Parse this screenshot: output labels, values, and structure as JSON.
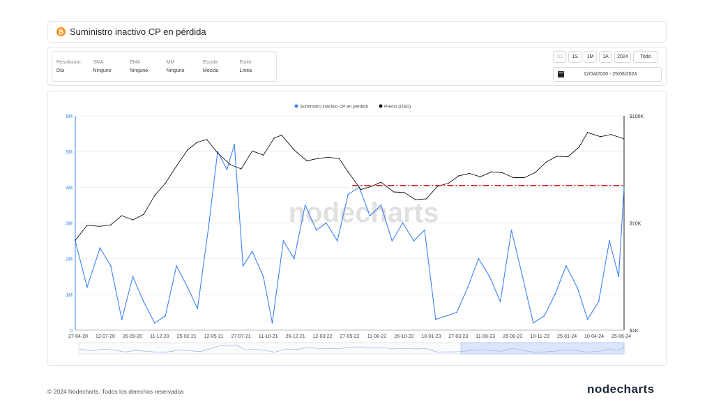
{
  "header": {
    "title": "Suministro inactivo CP en pérdida",
    "coin_icon": "bitcoin-icon"
  },
  "controls": [
    {
      "label": "Resolución",
      "value": "Día"
    },
    {
      "label": "SMA",
      "value": "Ninguno"
    },
    {
      "label": "EMA",
      "value": "Ninguno"
    },
    {
      "label": "MM",
      "value": "Ninguno"
    },
    {
      "label": "Escala",
      "value": "Mezcla"
    },
    {
      "label": "Estilo",
      "value": "Línea"
    }
  ],
  "range_buttons": [
    {
      "label": "1D",
      "disabled": true
    },
    {
      "label": "1S",
      "disabled": false
    },
    {
      "label": "1M",
      "disabled": false
    },
    {
      "label": "1A",
      "disabled": false
    },
    {
      "label": "2024",
      "disabled": false
    },
    {
      "label": "Todo",
      "disabled": false
    }
  ],
  "date_range": "12/04/2020 - 25/06/2024",
  "footer": {
    "copyright": "© 2024 Nodecharts. Todos los derechos reservados",
    "logo": "nodecharts"
  },
  "watermark": "nodecharts",
  "colors": {
    "supply": "#3b82f6",
    "price": "#111111",
    "reference_line": "#d62020",
    "accent": "#f7931a"
  },
  "chart_data": {
    "type": "line",
    "legend": [
      "Suministro inactivo CP en pérdida",
      "Precio (USD)"
    ],
    "legend_position": "top-center",
    "x_tick_labels": [
      "27-04-20",
      "12-07-20",
      "26-09-20",
      "11-12-20",
      "25-02-21",
      "12-05-21",
      "27-07-21",
      "11-10-21",
      "26-12-21",
      "12-03-22",
      "27-05-22",
      "11-08-22",
      "26-10-22",
      "10-01-23",
      "27-03-23",
      "11-06-23",
      "26-08-23",
      "10-11-23",
      "25-01-24",
      "10-04-24",
      "25-06-24"
    ],
    "y_left_ticks": [
      "0",
      "1M",
      "2M",
      "3M",
      "4M",
      "5M",
      "6M"
    ],
    "y_left_range": [
      0,
      6000000
    ],
    "y_right_ticks": [
      "$1K",
      "$10K",
      "$100K"
    ],
    "y_right_scale": "log",
    "y_right_range": [
      1000,
      100000
    ],
    "series": [
      {
        "name": "Suministro inactivo CP en pérdida",
        "axis": "left",
        "x": [
          "2020-04-12",
          "2020-05-15",
          "2020-06-20",
          "2020-07-20",
          "2020-08-20",
          "2020-09-20",
          "2020-10-20",
          "2020-11-20",
          "2020-12-20",
          "2021-01-20",
          "2021-02-20",
          "2021-03-20",
          "2021-04-20",
          "2021-05-15",
          "2021-06-10",
          "2021-07-01",
          "2021-07-25",
          "2021-08-20",
          "2021-09-20",
          "2021-10-15",
          "2021-11-15",
          "2021-12-15",
          "2022-01-15",
          "2022-02-15",
          "2022-03-15",
          "2022-04-15",
          "2022-05-15",
          "2022-06-15",
          "2022-07-15",
          "2022-08-15",
          "2022-09-15",
          "2022-10-15",
          "2022-11-15",
          "2022-12-15",
          "2023-01-15",
          "2023-02-15",
          "2023-03-15",
          "2023-04-15",
          "2023-05-15",
          "2023-06-15",
          "2023-07-15",
          "2023-08-15",
          "2023-09-15",
          "2023-10-15",
          "2023-11-15",
          "2023-12-15",
          "2024-01-15",
          "2024-02-15",
          "2024-03-15",
          "2024-04-15",
          "2024-05-15",
          "2024-06-10",
          "2024-06-25"
        ],
        "values": [
          2500000,
          1200000,
          2300000,
          1800000,
          300000,
          1500000,
          800000,
          200000,
          400000,
          1800000,
          1200000,
          600000,
          2900000,
          5000000,
          4500000,
          5200000,
          1800000,
          2200000,
          1500000,
          200000,
          2500000,
          2000000,
          3500000,
          2800000,
          3000000,
          2500000,
          3800000,
          4000000,
          3200000,
          3500000,
          2500000,
          3000000,
          2500000,
          2800000,
          300000,
          400000,
          500000,
          1200000,
          2000000,
          1500000,
          800000,
          2800000,
          1500000,
          200000,
          400000,
          1000000,
          1800000,
          1200000,
          300000,
          800000,
          2500000,
          1500000,
          4000000
        ]
      },
      {
        "name": "Precio (USD)",
        "axis": "right",
        "x": [
          "2020-04-12",
          "2020-05-15",
          "2020-06-20",
          "2020-07-20",
          "2020-08-20",
          "2020-09-20",
          "2020-10-20",
          "2020-11-20",
          "2020-12-20",
          "2021-01-20",
          "2021-02-20",
          "2021-03-20",
          "2021-04-15",
          "2021-05-15",
          "2021-06-20",
          "2021-07-20",
          "2021-08-20",
          "2021-09-20",
          "2021-10-20",
          "2021-11-10",
          "2021-12-15",
          "2022-01-20",
          "2022-02-20",
          "2022-03-20",
          "2022-04-20",
          "2022-05-15",
          "2022-06-20",
          "2022-07-20",
          "2022-08-15",
          "2022-09-20",
          "2022-10-20",
          "2022-11-20",
          "2022-12-20",
          "2023-01-20",
          "2023-02-20",
          "2023-03-20",
          "2023-04-20",
          "2023-05-20",
          "2023-06-20",
          "2023-07-20",
          "2023-08-20",
          "2023-09-20",
          "2023-10-20",
          "2023-11-20",
          "2023-12-20",
          "2024-01-20",
          "2024-02-20",
          "2024-03-15",
          "2024-04-20",
          "2024-05-20",
          "2024-06-25"
        ],
        "values": [
          6900,
          9500,
          9300,
          9600,
          11700,
          10700,
          12000,
          18000,
          23500,
          34000,
          48000,
          57000,
          60000,
          45000,
          35000,
          32000,
          47000,
          43000,
          62000,
          66000,
          48000,
          38000,
          40000,
          41000,
          40000,
          30000,
          20500,
          22000,
          24000,
          19500,
          19200,
          16500,
          16800,
          22000,
          23500,
          27500,
          29000,
          27000,
          30000,
          29500,
          26500,
          26500,
          29500,
          37000,
          42000,
          41500,
          51000,
          70000,
          64000,
          67000,
          61000
        ]
      }
    ],
    "reference_line": {
      "axis": "left",
      "value": 4050000,
      "from": "2022-05-27",
      "to": "2024-06-25",
      "style": "dash-dot"
    }
  }
}
